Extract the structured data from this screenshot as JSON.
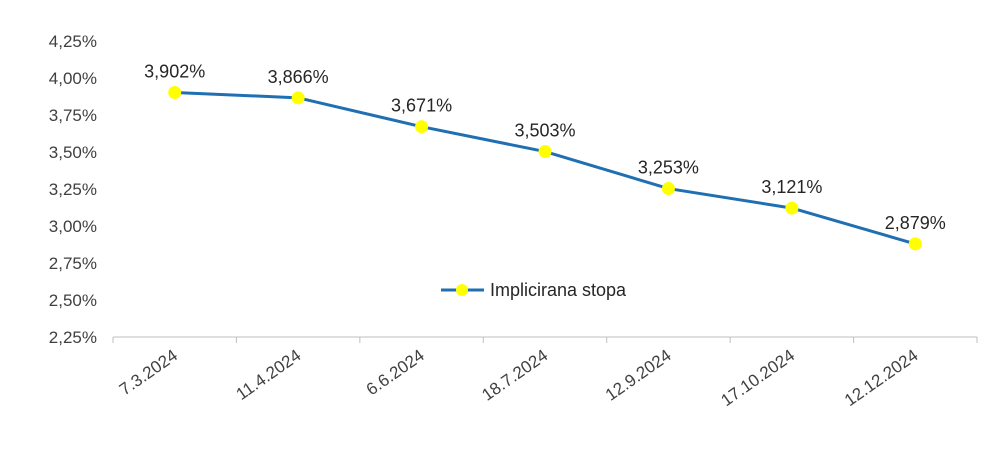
{
  "chart_data": {
    "type": "line",
    "categories": [
      "7.3.2024",
      "11.4.2024",
      "6.6.2024",
      "18.7.2024",
      "12.9.2024",
      "17.10.2024",
      "12.12.2024"
    ],
    "series": [
      {
        "name": "Implicirana stopa",
        "values": [
          3.902,
          3.866,
          3.671,
          3.503,
          3.253,
          3.121,
          2.879
        ],
        "data_labels": [
          "3,902%",
          "3,866%",
          "3,671%",
          "3,503%",
          "3,253%",
          "3,121%",
          "2,879%"
        ],
        "line_color": "#1F6FB2",
        "marker_color": "#FFFF00"
      }
    ],
    "y_ticks": [
      "2,25%",
      "2,50%",
      "2,75%",
      "3,00%",
      "3,25%",
      "3,50%",
      "3,75%",
      "4,00%",
      "4,25%"
    ],
    "ylim": [
      2.25,
      4.25
    ],
    "grid": false,
    "legend_position": "center",
    "title": "",
    "xlabel": "",
    "ylabel": ""
  }
}
